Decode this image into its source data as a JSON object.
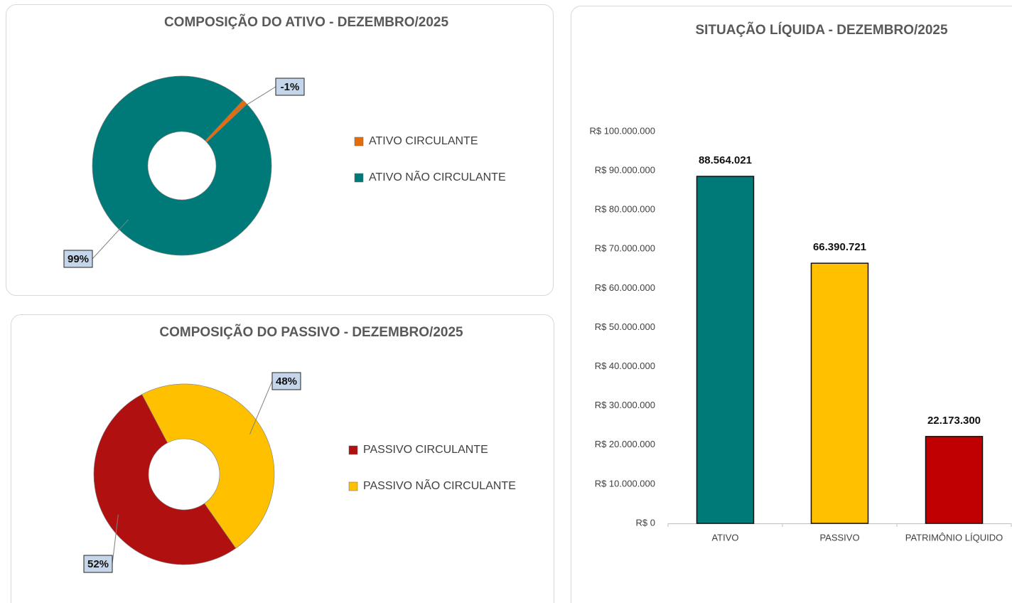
{
  "chart_data": [
    {
      "type": "donut",
      "title": "COMPOSIÇÃO DO ATIVO - DEZEMBRO/2025",
      "categories": [
        "ATIVO CIRCULANTE",
        "ATIVO NÃO CIRCULANTE"
      ],
      "values": [
        -1,
        99
      ],
      "value_labels": [
        "-1%",
        "99%"
      ],
      "colors": [
        "#e46c0a",
        "#007a78"
      ]
    },
    {
      "type": "donut",
      "title": "COMPOSIÇÃO DO PASSIVO - DEZEMBRO/2025",
      "categories": [
        "PASSIVO CIRCULANTE",
        "PASSIVO NÃO CIRCULANTE"
      ],
      "values": [
        52,
        48
      ],
      "value_labels": [
        "52%",
        "48%"
      ],
      "colors": [
        "#b01010",
        "#ffc000"
      ]
    },
    {
      "type": "bar",
      "title": "SITUAÇÃO LÍQUIDA - DEZEMBRO/2025",
      "categories": [
        "ATIVO",
        "PASSIVO",
        "PATRIMÔNIO LÍQUIDO"
      ],
      "values": [
        88564021,
        66390721,
        22173300
      ],
      "value_labels": [
        "88.564.021",
        "66.390.721",
        "22.173.300"
      ],
      "colors": [
        "#007a78",
        "#ffc000",
        "#c00000"
      ],
      "ylim": [
        0,
        100000000
      ],
      "yticks": [
        {
          "value": 0,
          "label": "R$ 0"
        },
        {
          "value": 10000000,
          "label": "R$ 10.000.000"
        },
        {
          "value": 20000000,
          "label": "R$ 20.000.000"
        },
        {
          "value": 30000000,
          "label": "R$ 30.000.000"
        },
        {
          "value": 40000000,
          "label": "R$ 40.000.000"
        },
        {
          "value": 50000000,
          "label": "R$ 50.000.000"
        },
        {
          "value": 60000000,
          "label": "R$ 60.000.000"
        },
        {
          "value": 70000000,
          "label": "R$ 70.000.000"
        },
        {
          "value": 80000000,
          "label": "R$ 80.000.000"
        },
        {
          "value": 90000000,
          "label": "R$ 90.000.000"
        },
        {
          "value": 100000000,
          "label": "R$ 100.000.000"
        }
      ],
      "grid": false
    }
  ]
}
